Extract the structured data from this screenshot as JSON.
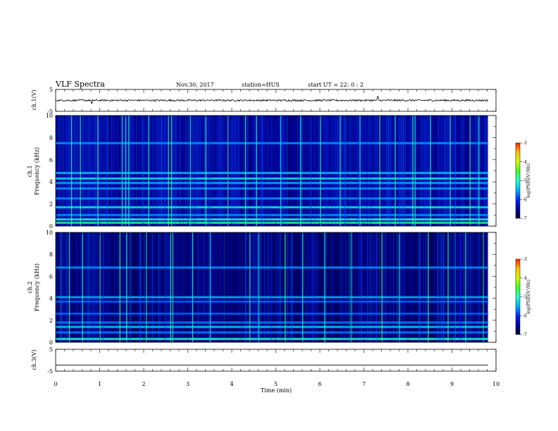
{
  "header": {
    "title": "VLF Spectra",
    "date": "Nov.30, 2017",
    "station": "station=HUS",
    "start": "start  UT =   22: 0  : 2"
  },
  "colors": {
    "colormap": [
      "#00003a",
      "#0000a0",
      "#0028ff",
      "#00b4ff",
      "#20ffd0",
      "#40ff20",
      "#d0ff00",
      "#ffc000",
      "#ff2000",
      "#ffffff"
    ]
  },
  "chart_data": [
    {
      "type": "line",
      "name": "ch1-waveform",
      "ylabel": "ch.1(V)",
      "ylim": [
        -5,
        5
      ],
      "yticks": [
        "5",
        "-5"
      ],
      "xlim": [
        0,
        10
      ],
      "baseline": 0,
      "noise_amplitude": 0.4,
      "spikes": [
        {
          "x": 0.82,
          "y": -1.4
        },
        {
          "x": 7.32,
          "y": 1.8
        }
      ]
    },
    {
      "type": "heatmap",
      "name": "ch1-spectrogram",
      "ylabel": "ch.1\nFrequency (kHz)",
      "ylim": [
        0,
        10
      ],
      "yticks": [
        "10",
        "8",
        "6",
        "4",
        "2",
        "0"
      ],
      "xlim": [
        0,
        9.82
      ],
      "background_log_psd": -6.3,
      "bands_khz": [
        {
          "f": 0.3,
          "level": -4.8
        },
        {
          "f": 0.6,
          "level": -5.0
        },
        {
          "f": 1.0,
          "level": -5.6
        },
        {
          "f": 1.7,
          "level": -5.1
        },
        {
          "f": 2.5,
          "level": -5.6
        },
        {
          "f": 3.4,
          "level": -5.6
        },
        {
          "f": 3.9,
          "level": -5.5
        },
        {
          "f": 4.3,
          "level": -5.2
        },
        {
          "f": 4.8,
          "level": -5.4
        },
        {
          "f": 7.5,
          "level": -5.6
        }
      ],
      "impulses_min": [
        0.35,
        0.55,
        0.95,
        1.5,
        1.58,
        1.65,
        2.1,
        2.55,
        2.62,
        3.05,
        3.4,
        3.9,
        4.3,
        4.55,
        5.1,
        5.55,
        6.0,
        6.45,
        6.9,
        7.35,
        7.7,
        8.1,
        8.15,
        8.5,
        8.95,
        9.4,
        9.6
      ]
    },
    {
      "type": "heatmap",
      "name": "ch2-spectrogram",
      "ylabel": "ch.2\nFrequency (kHz)",
      "ylim": [
        0,
        10
      ],
      "yticks": [
        "10",
        "8",
        "6",
        "4",
        "2",
        "0"
      ],
      "xlim": [
        0,
        9.82
      ],
      "background_log_psd": -6.5,
      "bands_khz": [
        {
          "f": 0.3,
          "level": -5.0
        },
        {
          "f": 0.9,
          "level": -5.7
        },
        {
          "f": 1.4,
          "level": -5.3
        },
        {
          "f": 1.8,
          "level": -5.7
        },
        {
          "f": 2.6,
          "level": -5.8
        },
        {
          "f": 3.7,
          "level": -5.8
        },
        {
          "f": 4.1,
          "level": -5.5
        },
        {
          "f": 6.8,
          "level": -5.6
        }
      ],
      "impulses_min": [
        0.3,
        0.6,
        1.0,
        1.45,
        1.6,
        2.05,
        2.6,
        2.65,
        3.1,
        3.5,
        4.4,
        4.6,
        5.2,
        5.6,
        6.1,
        6.7,
        7.4,
        7.8,
        8.45,
        8.9,
        9.3,
        9.7
      ]
    },
    {
      "type": "line",
      "name": "ch3-waveform",
      "ylabel": "ch.3(V)",
      "ylim": [
        -5,
        5
      ],
      "yticks": [
        "5",
        "-5"
      ],
      "xlim": [
        0,
        10
      ],
      "baseline": -2.2
    }
  ],
  "axes": {
    "xlabel": "Time (min)",
    "xticks": [
      "0",
      "1",
      "2",
      "3",
      "4",
      "5",
      "6",
      "7",
      "8",
      "9",
      "10"
    ]
  },
  "colorbars": [
    {
      "label": "log(PSD)(V²/Hz)",
      "ticks": [
        "-3",
        "-4",
        "-5",
        "-6",
        "-7"
      ],
      "range": [
        -7,
        -3
      ]
    },
    {
      "label": "log(PSD)(V²/Hz)",
      "ticks": [
        "-3",
        "-4",
        "-5",
        "-6",
        "-7"
      ],
      "range": [
        -7,
        -3
      ]
    }
  ]
}
